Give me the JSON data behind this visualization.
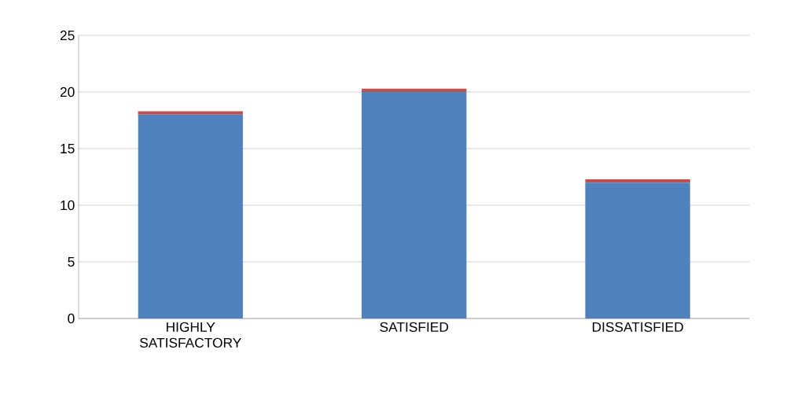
{
  "chart_data": {
    "type": "bar",
    "stacked": true,
    "categories": [
      "HIGHLY SATISFACTORY",
      "SATISFIED",
      "DISSATISFIED"
    ],
    "series": [
      {
        "color": "#4f81bd",
        "values": [
          18,
          20,
          12
        ]
      },
      {
        "color": "#c0504d",
        "values": [
          0.3,
          0.3,
          0.3
        ]
      }
    ],
    "ylim": [
      0,
      25
    ],
    "yticks": [
      0,
      5,
      10,
      15,
      20,
      25
    ],
    "grid": "y"
  }
}
